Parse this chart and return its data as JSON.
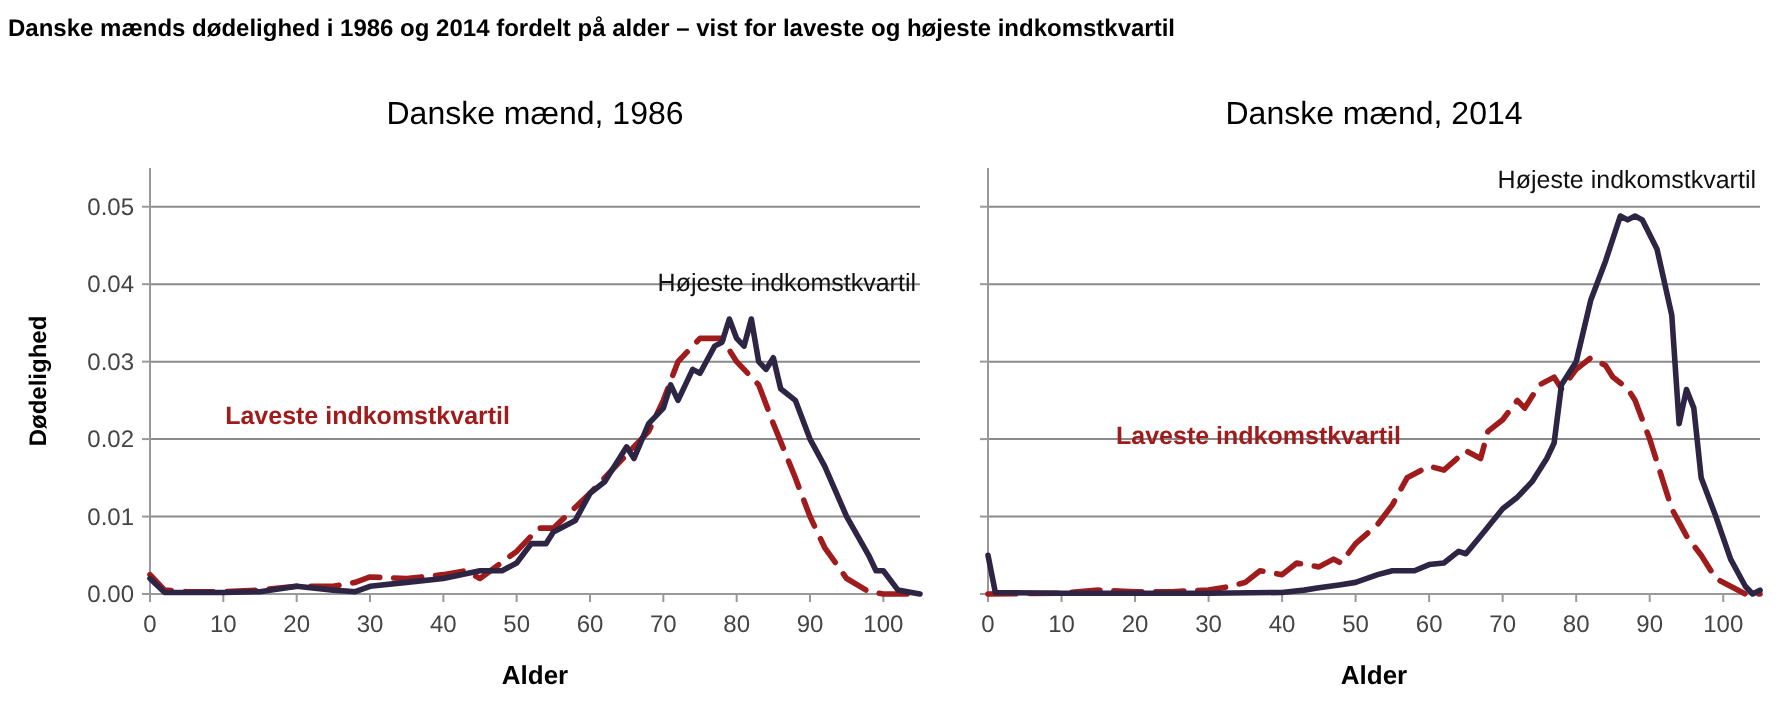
{
  "chart_data": [
    {
      "type": "line",
      "title": "Danske mænd, 1986",
      "annotations": [
        "Danske mænds dødelighed i 1986 og 2014 fordelt på alder – vist for laveste og højeste indkomstkvartil"
      ],
      "xlabel": "Alder",
      "ylabel": "Dødelighed",
      "xlim": [
        0,
        105
      ],
      "xticks": [
        0,
        10,
        20,
        30,
        40,
        50,
        60,
        70,
        80,
        90,
        100
      ],
      "ylim": [
        0,
        0.055
      ],
      "yticks": [
        {
          "value": 0,
          "label": "0.00"
        },
        {
          "value": 0.01,
          "label": "0.01"
        },
        {
          "value": 0.02,
          "label": "0.02"
        },
        {
          "value": 0.03,
          "label": "0.03"
        },
        {
          "value": 0.04,
          "label": "0.04"
        },
        {
          "value": 0.05,
          "label": "0.05"
        }
      ],
      "grid": "y",
      "series": [
        {
          "name": "Laveste indkomstkvartil",
          "color": "#a01c1c",
          "line_style": "dashed",
          "x": [
            0,
            2,
            5,
            10,
            15,
            20,
            25,
            28,
            30,
            35,
            40,
            43,
            45,
            50,
            53,
            55,
            60,
            65,
            68,
            70,
            72,
            75,
            78,
            80,
            83,
            85,
            88,
            90,
            92,
            95,
            98,
            100,
            105
          ],
          "values": [
            0.0025,
            0.0005,
            0.0003,
            0.0003,
            0.0005,
            0.001,
            0.001,
            0.0015,
            0.0022,
            0.002,
            0.0025,
            0.003,
            0.002,
            0.0055,
            0.0085,
            0.0085,
            0.013,
            0.018,
            0.021,
            0.025,
            0.03,
            0.033,
            0.033,
            0.03,
            0.027,
            0.022,
            0.015,
            0.01,
            0.006,
            0.002,
            0.0003,
            0,
            0
          ]
        },
        {
          "name": "Højeste indkomstkvartil",
          "color": "#2e2545",
          "line_style": "solid",
          "x": [
            0,
            2,
            10,
            15,
            20,
            25,
            28,
            30,
            35,
            40,
            45,
            48,
            50,
            52,
            54,
            55,
            58,
            60,
            62,
            65,
            66,
            68,
            70,
            71,
            72,
            74,
            75,
            77,
            78,
            79,
            80,
            81,
            82,
            83,
            84,
            85,
            86,
            88,
            90,
            92,
            95,
            98,
            99,
            100,
            102,
            105
          ],
          "values": [
            0.002,
            0.0002,
            0.0002,
            0.0003,
            0.001,
            0.0005,
            0.0003,
            0.001,
            0.0015,
            0.002,
            0.003,
            0.003,
            0.004,
            0.0065,
            0.0065,
            0.008,
            0.0095,
            0.013,
            0.0145,
            0.019,
            0.0175,
            0.022,
            0.024,
            0.027,
            0.025,
            0.029,
            0.0285,
            0.032,
            0.0325,
            0.0355,
            0.033,
            0.032,
            0.0355,
            0.03,
            0.029,
            0.0305,
            0.0265,
            0.025,
            0.02,
            0.0165,
            0.01,
            0.005,
            0.003,
            0.003,
            0.0005,
            0
          ]
        }
      ]
    },
    {
      "type": "line",
      "title": "Danske mænd, 2014",
      "xlabel": "Alder",
      "xlim": [
        0,
        105
      ],
      "xticks": [
        0,
        10,
        20,
        30,
        40,
        50,
        60,
        70,
        80,
        90,
        100
      ],
      "ylim": [
        0,
        0.055
      ],
      "yticks": [
        {
          "value": 0,
          "label": null
        },
        {
          "value": 0.01,
          "label": null
        },
        {
          "value": 0.02,
          "label": null
        },
        {
          "value": 0.03,
          "label": null
        },
        {
          "value": 0.04,
          "label": null
        },
        {
          "value": 0.05,
          "label": null
        }
      ],
      "tick_labels": "x",
      "grid": "y",
      "series": [
        {
          "name": "Laveste indkomstkvartil",
          "color": "#a01c1c",
          "line_style": "dashed",
          "x": [
            0,
            10,
            15,
            20,
            25,
            30,
            33,
            35,
            37,
            40,
            42,
            45,
            47,
            48,
            50,
            53,
            55,
            57,
            60,
            62,
            65,
            67,
            68,
            70,
            72,
            73,
            75,
            77,
            78,
            80,
            82,
            84,
            85,
            87,
            88,
            90,
            92,
            93,
            95,
            97,
            99,
            101,
            103,
            105
          ],
          "values": [
            0,
            0.0001,
            0.0005,
            0.0003,
            0.0003,
            0.0005,
            0.001,
            0.0015,
            0.003,
            0.0025,
            0.004,
            0.0035,
            0.0045,
            0.004,
            0.0065,
            0.009,
            0.0115,
            0.015,
            0.0165,
            0.016,
            0.0185,
            0.0175,
            0.021,
            0.0225,
            0.025,
            0.024,
            0.027,
            0.028,
            0.0265,
            0.029,
            0.0305,
            0.0295,
            0.028,
            0.0265,
            0.025,
            0.02,
            0.014,
            0.011,
            0.0075,
            0.005,
            0.002,
            0.001,
            0,
            0
          ]
        },
        {
          "name": "Højeste indkomstkvartil",
          "color": "#2e2545",
          "line_style": "solid",
          "x": [
            0,
            1,
            10,
            30,
            40,
            43,
            45,
            48,
            50,
            53,
            55,
            58,
            60,
            62,
            64,
            65,
            67,
            70,
            72,
            74,
            76,
            77,
            78,
            80,
            82,
            84,
            86,
            87,
            88,
            89,
            91,
            93,
            94,
            95,
            96,
            97,
            99,
            101,
            103,
            104,
            105
          ],
          "values": [
            0.005,
            0.0002,
            0.0001,
            0.0001,
            0.0002,
            0.0005,
            0.0008,
            0.0012,
            0.0015,
            0.0025,
            0.003,
            0.003,
            0.0038,
            0.004,
            0.0055,
            0.0052,
            0.0075,
            0.011,
            0.0125,
            0.0145,
            0.0175,
            0.0195,
            0.027,
            0.03,
            0.038,
            0.043,
            0.0488,
            0.0483,
            0.0488,
            0.0483,
            0.0445,
            0.036,
            0.022,
            0.0264,
            0.024,
            0.015,
            0.01,
            0.0045,
            0.001,
            0,
            0.0005
          ]
        }
      ]
    }
  ]
}
